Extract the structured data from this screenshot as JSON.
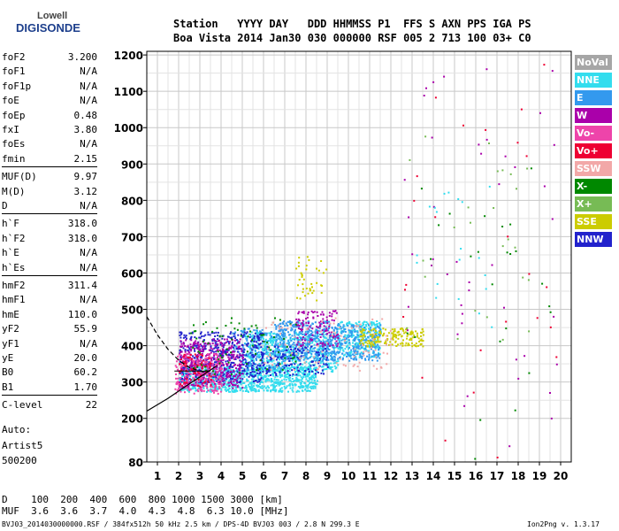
{
  "logo": {
    "line1": "Lowell",
    "line2": "DIGISONDE"
  },
  "header": {
    "row1": "Station   YYYY DAY   DDD HHMMSS P1  FFS S AXN PPS IGA PS",
    "row2": "Boa Vista 2014 Jan30 030 000000 RSF 005 2 713 100 03+ C0"
  },
  "params": [
    {
      "k": "foF2",
      "v": "3.200"
    },
    {
      "k": "foF1",
      "v": "N/A"
    },
    {
      "k": "foF1p",
      "v": "N/A"
    },
    {
      "k": "foE",
      "v": "N/A"
    },
    {
      "k": "foEp",
      "v": "0.48"
    },
    {
      "k": "fxI",
      "v": "3.80"
    },
    {
      "k": "foEs",
      "v": "N/A"
    },
    {
      "k": "fmin",
      "v": "2.15"
    },
    {
      "k": "MUF(D)",
      "v": "9.97"
    },
    {
      "k": "M(D)",
      "v": "3.12"
    },
    {
      "k": "D",
      "v": "N/A"
    },
    {
      "k": "h`F",
      "v": "318.0"
    },
    {
      "k": "h`F2",
      "v": "318.0"
    },
    {
      "k": "h`E",
      "v": "N/A"
    },
    {
      "k": "h`Es",
      "v": "N/A"
    },
    {
      "k": "hmF2",
      "v": "311.4"
    },
    {
      "k": "hmF1",
      "v": "N/A"
    },
    {
      "k": "hmE",
      "v": "110.0"
    },
    {
      "k": "yF2",
      "v": "55.9"
    },
    {
      "k": "yF1",
      "v": "N/A"
    },
    {
      "k": "yE",
      "v": "20.0"
    },
    {
      "k": "B0",
      "v": "60.2"
    },
    {
      "k": "B1",
      "v": "1.70"
    },
    {
      "k": "C-level",
      "v": "22"
    }
  ],
  "auto": {
    "line1": "Auto:",
    "line2": "Artist5",
    "line3": "500200"
  },
  "legend": [
    {
      "label": "NoVal",
      "color": "#a6a6a6"
    },
    {
      "label": "NNE",
      "color": "#33ddee"
    },
    {
      "label": "E",
      "color": "#3399ee"
    },
    {
      "label": "W",
      "color": "#aa00aa"
    },
    {
      "label": "Vo-",
      "color": "#ee44aa"
    },
    {
      "label": "Vo+",
      "color": "#ee0033"
    },
    {
      "label": "SSW",
      "color": "#f2a8a8"
    },
    {
      "label": "X-",
      "color": "#008800"
    },
    {
      "label": "X+",
      "color": "#77bb55"
    },
    {
      "label": "SSE",
      "color": "#cccc00"
    },
    {
      "label": "NNW",
      "color": "#2222cc"
    }
  ],
  "footer": {
    "d_row": "D    100  200  400  600  800 1000 1500 3000 [km]",
    "muf_row": "MUF  3.6  3.6  3.7  4.0  4.3  4.8  6.3 10.0 [MHz]",
    "file": "BVJ03_2014030000000.RSF / 384fx512h 50 kHz 2.5 km / DPS-4D BVJ03 003 / 2.8 N 299.3 E",
    "version": "Ion2Png v. 1.3.17"
  },
  "chart_data": {
    "type": "scatter",
    "xlim": [
      0.5,
      20.5
    ],
    "ylim": [
      80,
      1210
    ],
    "x_ticks": [
      "1",
      "2",
      "3",
      "4",
      "5",
      "6",
      "7",
      "8",
      "9",
      "10",
      "11",
      "12",
      "13",
      "14",
      "15",
      "16",
      "17",
      "18",
      "19",
      "20"
    ],
    "y_ticks": [
      "80",
      "200",
      "300",
      "400",
      "500",
      "600",
      "700",
      "800",
      "900",
      "1000",
      "1100",
      "1200"
    ],
    "grid": true,
    "clusters": [
      {
        "series": "NNE",
        "x": [
          2.0,
          8.5
        ],
        "y": [
          275,
          345
        ],
        "n": 900
      },
      {
        "series": "NNE",
        "x": [
          5.0,
          9.5
        ],
        "y": [
          330,
          440
        ],
        "n": 600
      },
      {
        "series": "NNE",
        "x": [
          9.5,
          11.5
        ],
        "y": [
          370,
          470
        ],
        "n": 260
      },
      {
        "series": "E",
        "x": [
          6.5,
          9.5
        ],
        "y": [
          360,
          470
        ],
        "n": 450
      },
      {
        "series": "E",
        "x": [
          9.5,
          11.5
        ],
        "y": [
          360,
          460
        ],
        "n": 200
      },
      {
        "series": "E",
        "x": [
          4.5,
          7.0
        ],
        "y": [
          330,
          450
        ],
        "n": 150
      },
      {
        "series": "NNW",
        "x": [
          2.0,
          6.0
        ],
        "y": [
          300,
          440
        ],
        "n": 500
      },
      {
        "series": "NNW",
        "x": [
          6.0,
          9.0
        ],
        "y": [
          320,
          400
        ],
        "n": 120
      },
      {
        "series": "W",
        "x": [
          2.0,
          5.0
        ],
        "y": [
          285,
          420
        ],
        "n": 380
      },
      {
        "series": "W",
        "x": [
          7.5,
          9.5
        ],
        "y": [
          400,
          500
        ],
        "n": 120
      },
      {
        "series": "Vo-",
        "x": [
          1.8,
          4.0
        ],
        "y": [
          270,
          380
        ],
        "n": 240
      },
      {
        "series": "Vo+",
        "x": [
          2.0,
          3.5
        ],
        "y": [
          290,
          380
        ],
        "n": 70
      },
      {
        "series": "SSE",
        "x": [
          10.5,
          13.5
        ],
        "y": [
          400,
          450
        ],
        "n": 180
      },
      {
        "series": "SSE",
        "x": [
          7.5,
          9.0
        ],
        "y": [
          520,
          650
        ],
        "n": 40
      },
      {
        "series": "X-",
        "x": [
          2.5,
          7.5
        ],
        "y": [
          320,
          480
        ],
        "n": 80
      },
      {
        "series": "X+",
        "x": [
          12.5,
          18.5
        ],
        "y": [
          400,
          1000
        ],
        "n": 25
      },
      {
        "series": "W",
        "x": [
          12.5,
          20.0
        ],
        "y": [
          90,
          1200
        ],
        "n": 45
      },
      {
        "series": "Vo+",
        "x": [
          12.5,
          20.0
        ],
        "y": [
          90,
          1200
        ],
        "n": 25
      },
      {
        "series": "X-",
        "x": [
          12.5,
          19.5
        ],
        "y": [
          90,
          1000
        ],
        "n": 25
      },
      {
        "series": "SSW",
        "x": [
          6.0,
          12.0
        ],
        "y": [
          330,
          480
        ],
        "n": 100
      },
      {
        "series": "NNE",
        "x": [
          13.0,
          17.0
        ],
        "y": [
          380,
          900
        ],
        "n": 20
      }
    ],
    "trace_solid": {
      "x": [
        0.5,
        1.5,
        2.5,
        3.3,
        3.8
      ],
      "y": [
        220,
        255,
        295,
        325,
        345
      ]
    },
    "trace_dashed": {
      "x": [
        0.5,
        1.0,
        1.5,
        2.0,
        2.5,
        3.0,
        3.3
      ],
      "y": [
        480,
        430,
        390,
        360,
        340,
        330,
        325
      ]
    },
    "trace_hline": {
      "x": [
        1.8,
        3.5
      ],
      "y": [
        330,
        330
      ]
    }
  }
}
